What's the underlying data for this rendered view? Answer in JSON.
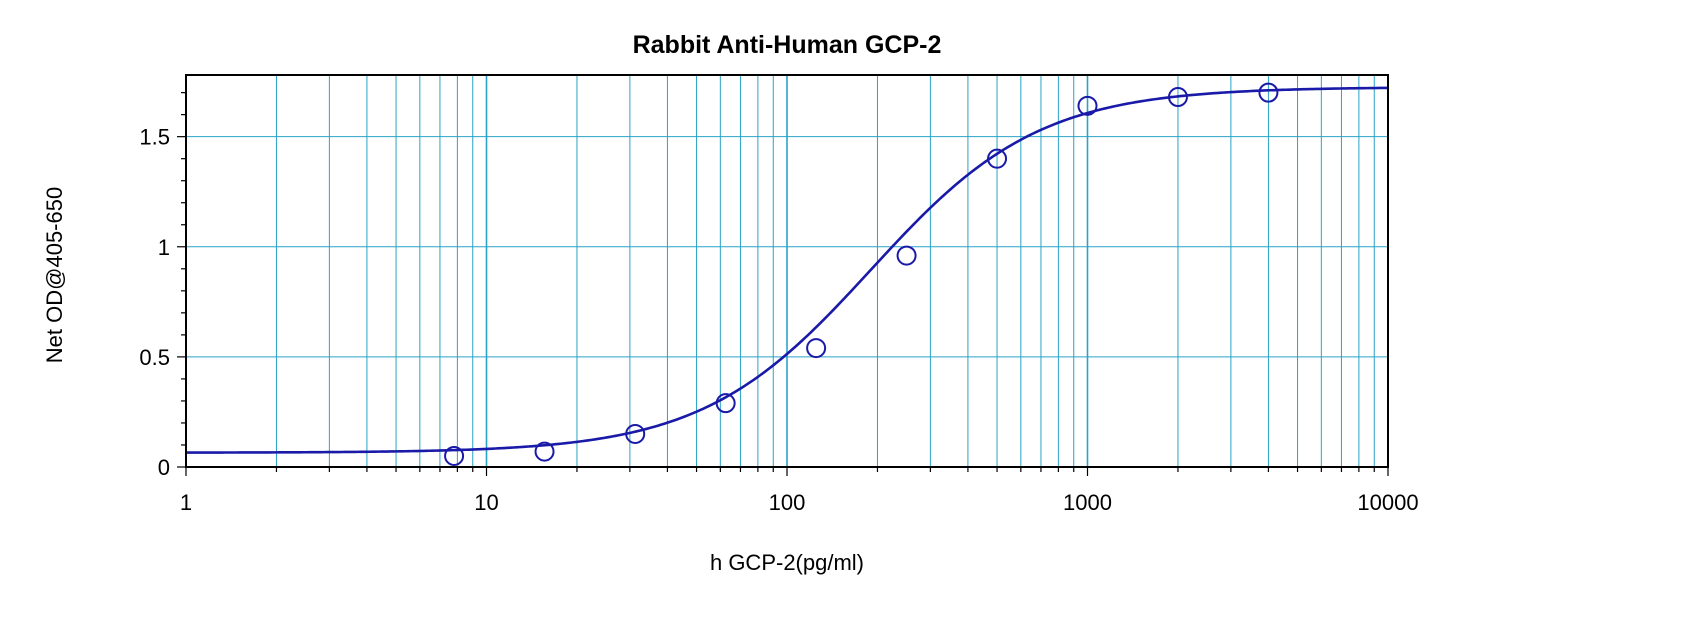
{
  "chart_data": {
    "type": "scatter",
    "title": "Rabbit Anti-Human GCP-2",
    "xlabel": "h GCP-2(pg/ml)",
    "ylabel": "Net OD@405-650",
    "x_scale": "log",
    "xlim": [
      1,
      10000
    ],
    "ylim": [
      0,
      1.78
    ],
    "x_ticks": [
      1,
      10,
      100,
      1000,
      10000
    ],
    "x_tick_labels": [
      "1",
      "10",
      "100",
      "1000",
      "10000"
    ],
    "y_ticks": [
      0,
      0.5,
      1,
      1.5
    ],
    "y_tick_labels": [
      "0",
      "0.5",
      "1",
      "1.5"
    ],
    "grid": true,
    "colors": {
      "grid": "#29a3c6",
      "series": "#1a1aa8",
      "axis": "#000000"
    },
    "series": [
      {
        "type": "scatter",
        "x": [
          7.8,
          15.6,
          31.25,
          62.5,
          125,
          250,
          500,
          1000,
          2000,
          4000
        ],
        "y": [
          0.05,
          0.07,
          0.15,
          0.29,
          0.54,
          0.96,
          1.4,
          1.64,
          1.68,
          1.7
        ]
      },
      {
        "type": "fit-curve",
        "model": "4PL",
        "bottom": 0.065,
        "top": 1.725,
        "ec50": 190,
        "hill": 1.55
      }
    ]
  }
}
